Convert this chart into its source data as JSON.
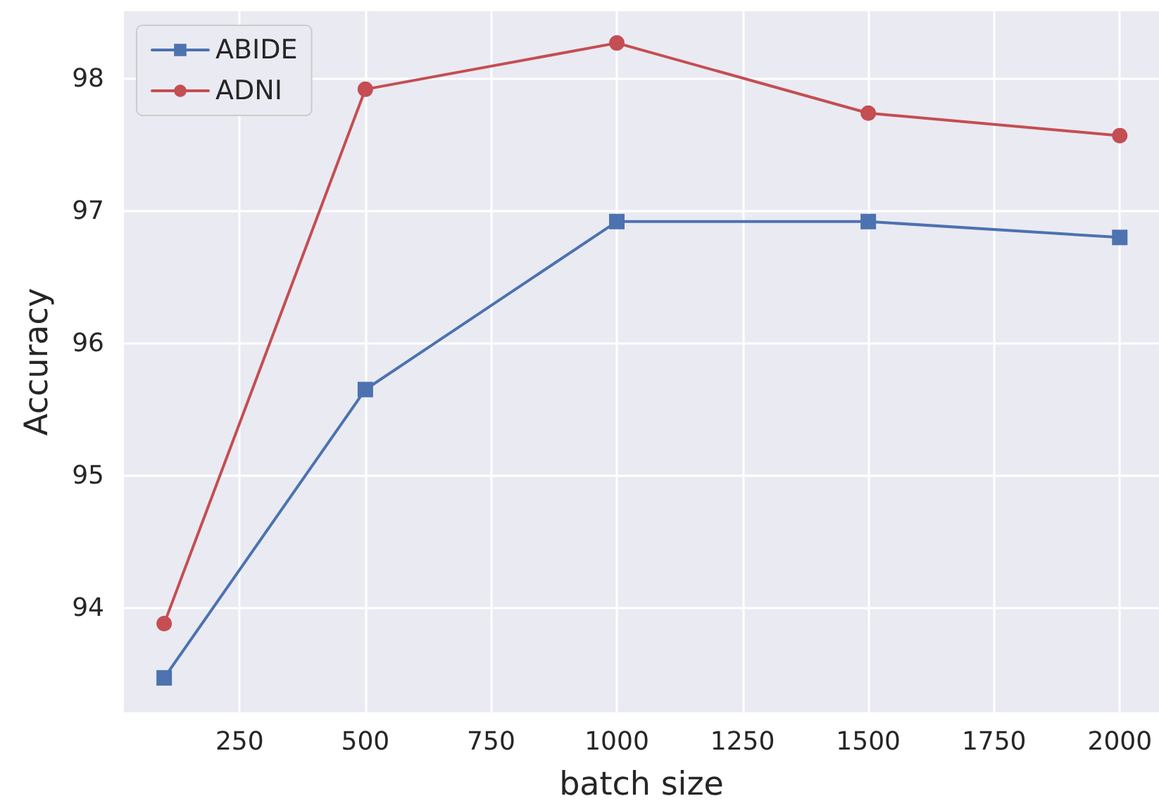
{
  "chart_data": {
    "type": "line",
    "xlabel": "batch size",
    "ylabel": "Accuracy",
    "x": [
      100,
      500,
      1000,
      1500,
      2000
    ],
    "series": [
      {
        "name": "ABIDE",
        "color": "#4c72b0",
        "marker": "square",
        "values": [
          93.47,
          95.65,
          96.92,
          96.92,
          96.8
        ]
      },
      {
        "name": "ADNI",
        "color": "#c44e52",
        "marker": "circle",
        "values": [
          93.88,
          97.92,
          98.27,
          97.74,
          97.57
        ]
      }
    ],
    "xlim": [
      20,
      2078
    ],
    "xticks": [
      250,
      500,
      750,
      1000,
      1250,
      1500,
      1750,
      2000
    ],
    "ylim": [
      93.21,
      98.51
    ],
    "yticks": [
      94,
      95,
      96,
      97,
      98
    ],
    "grid": true,
    "legend": "top left",
    "line_style": "solid"
  }
}
